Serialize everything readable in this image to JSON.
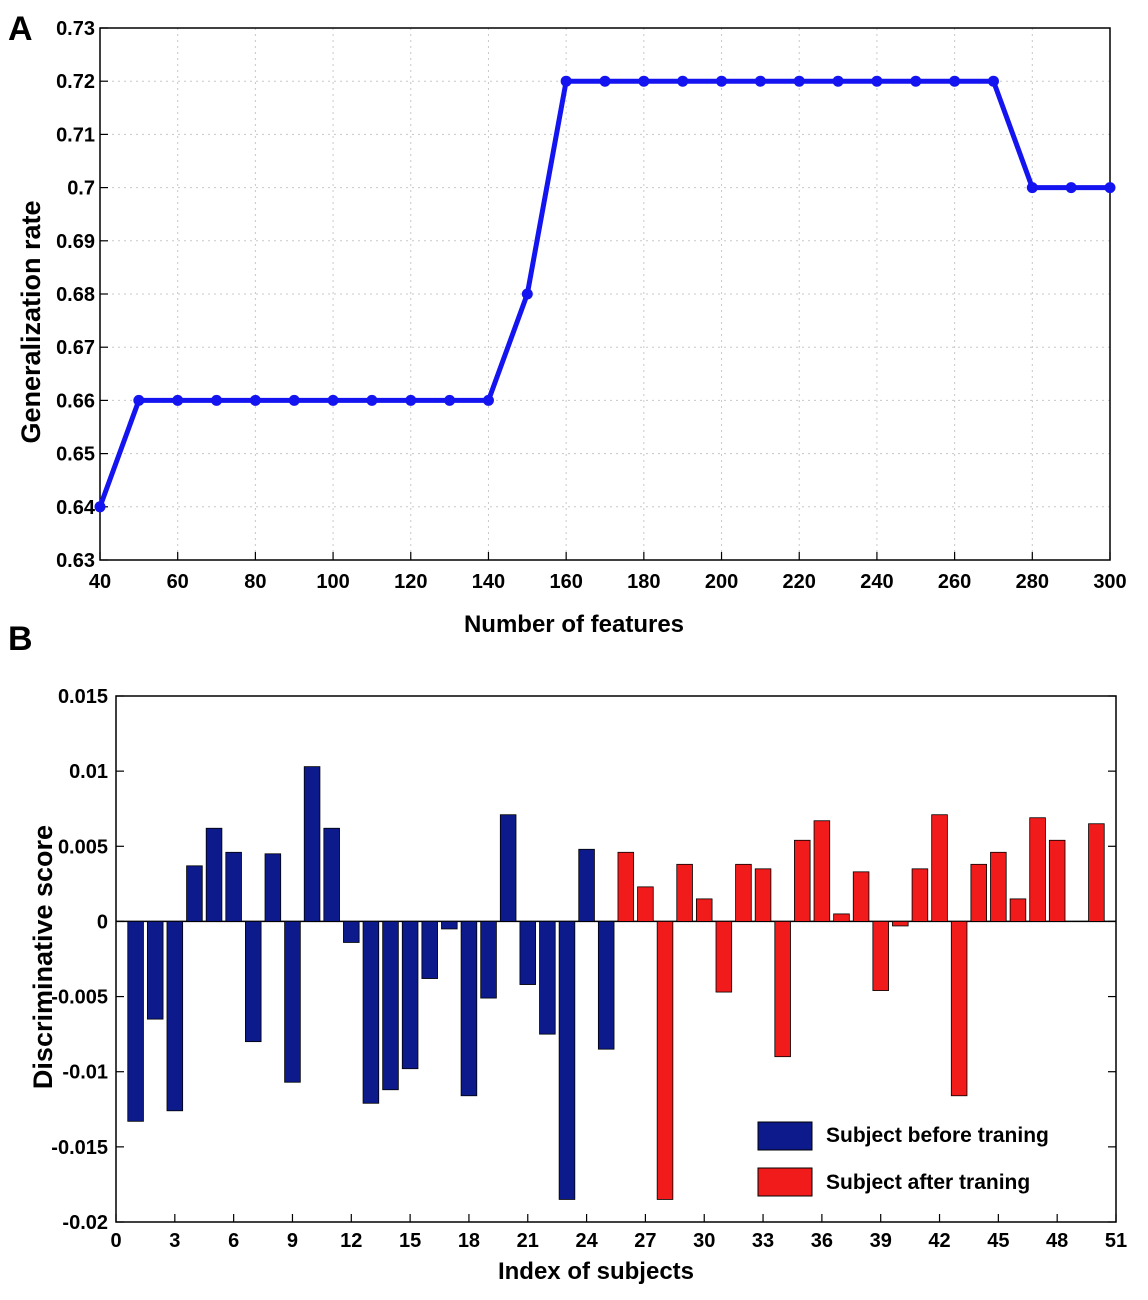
{
  "chart_data": [
    {
      "panel": "A",
      "type": "line",
      "xlabel": "Number of features",
      "ylabel": "Generalization rate",
      "xlim": [
        40,
        300
      ],
      "ylim": [
        0.63,
        0.73
      ],
      "xticks": [
        40,
        60,
        80,
        100,
        120,
        140,
        160,
        180,
        200,
        220,
        240,
        260,
        280,
        300
      ],
      "yticks": [
        0.63,
        0.64,
        0.65,
        0.66,
        0.67,
        0.68,
        0.69,
        0.7,
        0.71,
        0.72,
        0.73
      ],
      "ytick_labels": [
        "0.63",
        "0.64",
        "0.65",
        "0.66",
        "0.67",
        "0.68",
        "0.69",
        "0.7",
        "0.71",
        "0.72",
        "0.73"
      ],
      "color": "#1414f0",
      "x": [
        40,
        50,
        60,
        70,
        80,
        90,
        100,
        110,
        120,
        130,
        140,
        150,
        160,
        170,
        180,
        190,
        200,
        210,
        220,
        230,
        240,
        250,
        260,
        270,
        280,
        290,
        300
      ],
      "y": [
        0.64,
        0.66,
        0.66,
        0.66,
        0.66,
        0.66,
        0.66,
        0.66,
        0.66,
        0.66,
        0.66,
        0.68,
        0.72,
        0.72,
        0.72,
        0.72,
        0.72,
        0.72,
        0.72,
        0.72,
        0.72,
        0.72,
        0.72,
        0.72,
        0.7,
        0.7,
        0.7
      ]
    },
    {
      "panel": "B",
      "type": "bar",
      "xlabel": "Index of subjects",
      "ylabel": "Discriminative score",
      "xlim": [
        0,
        51
      ],
      "ylim": [
        -0.02,
        0.015
      ],
      "xticks": [
        0,
        3,
        6,
        9,
        12,
        15,
        18,
        21,
        24,
        27,
        30,
        33,
        36,
        39,
        42,
        45,
        48,
        51
      ],
      "yticks": [
        -0.02,
        -0.015,
        -0.01,
        -0.005,
        0,
        0.005,
        0.01,
        0.015
      ],
      "ytick_labels": [
        "-0.02",
        "-0.015",
        "-0.01",
        "-0.005",
        "0",
        "0.005",
        "0.01",
        "0.015"
      ],
      "series": [
        {
          "name": "Subject before traning",
          "color": "#0c1a8c",
          "x": [
            1,
            2,
            3,
            4,
            5,
            6,
            7,
            8,
            9,
            10,
            11,
            12,
            13,
            14,
            15,
            16,
            17,
            18,
            19,
            20,
            21,
            22,
            23,
            24,
            25
          ],
          "values": [
            -0.0133,
            -0.0065,
            -0.0126,
            0.0037,
            0.0062,
            0.0046,
            -0.008,
            0.0045,
            -0.0107,
            0.0103,
            0.0062,
            -0.0014,
            -0.0121,
            -0.0112,
            -0.0098,
            -0.0038,
            -0.0005,
            -0.0116,
            -0.0051,
            0.0071,
            -0.0042,
            -0.0075,
            -0.0185,
            0.0048,
            -0.0085
          ]
        },
        {
          "name": "Subject after traning",
          "color": "#f21b1b",
          "x": [
            26,
            27,
            28,
            29,
            30,
            31,
            32,
            33,
            34,
            35,
            36,
            37,
            38,
            39,
            40,
            41,
            42,
            43,
            44,
            45,
            46,
            47,
            48,
            50
          ],
          "values": [
            0.0046,
            0.0023,
            -0.0185,
            0.0038,
            0.0015,
            -0.0047,
            0.0038,
            0.0035,
            -0.009,
            0.0054,
            0.0067,
            0.0005,
            0.0033,
            -0.0046,
            -0.0003,
            0.0035,
            0.0071,
            -0.0116,
            0.0038,
            0.0046,
            0.0015,
            0.0069,
            0.0054,
            0.0065
          ]
        }
      ],
      "legend_position": "lower-right"
    }
  ]
}
